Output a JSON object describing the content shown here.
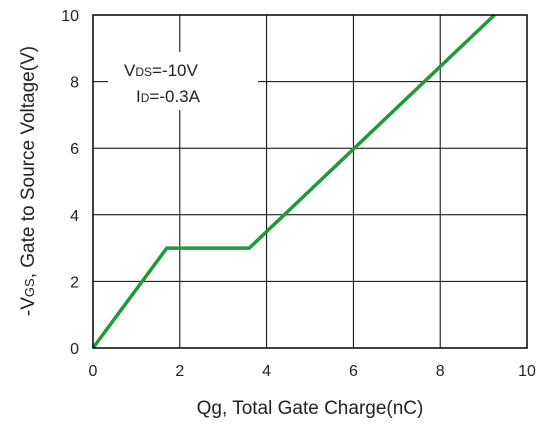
{
  "chart_data": {
    "type": "line",
    "title": "",
    "xlabel": "Qg, Total Gate Charge(nC)",
    "ylabel_prefix": "-V",
    "ylabel_subscript": "GS",
    "ylabel_rest": ", Gate to Source Voltage(V)",
    "xlim": [
      0,
      10
    ],
    "ylim": [
      0,
      10
    ],
    "xticks": [
      0,
      2,
      4,
      6,
      8,
      10
    ],
    "yticks": [
      0,
      2,
      4,
      6,
      8,
      10
    ],
    "xtick_labels": [
      "0",
      "2",
      "4",
      "6",
      "8",
      "10"
    ],
    "ytick_labels": [
      "0",
      "2",
      "4",
      "6",
      "8",
      "10"
    ],
    "grid": true,
    "series": [
      {
        "color": "#1e9a3a",
        "x": [
          0,
          1.7,
          3.6,
          9.25
        ],
        "y": [
          0,
          3,
          3,
          10
        ]
      }
    ],
    "annotations": {
      "vds": {
        "main": "V",
        "sub": "DS",
        "value": "=-10V"
      },
      "id": {
        "main": "I",
        "sub": "D",
        "value": "=-0.3A"
      }
    }
  }
}
